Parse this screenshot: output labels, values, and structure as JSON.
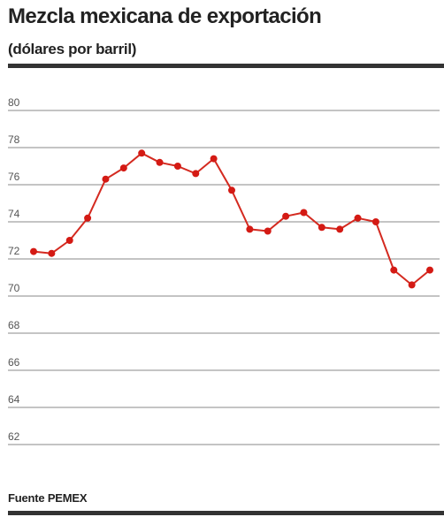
{
  "header": {
    "title": "Mezcla mexicana de exportación",
    "subtitle": "(dólares por barril)"
  },
  "footer": {
    "source": "Fuente PEMEX"
  },
  "colors": {
    "line": "#d42a20",
    "marker": "#d41a14",
    "grid": "#8a8a8a",
    "rule": "#333333"
  },
  "chart_data": {
    "type": "line",
    "title": "Mezcla mexicana de exportación",
    "subtitle": "(dólares por barril)",
    "xlabel": "",
    "ylabel": "",
    "ylim": [
      62,
      80
    ],
    "yticks": [
      80,
      78,
      76,
      74,
      72,
      70,
      68,
      66,
      64,
      62
    ],
    "grid": "horizontal",
    "legend": "none",
    "series": [
      {
        "values": [
          72.4,
          72.3,
          73.0,
          74.2,
          76.3,
          76.9,
          77.7,
          77.2,
          77.0,
          76.6,
          77.4,
          75.7,
          73.6,
          73.5,
          74.3,
          74.5,
          73.7,
          73.6,
          74.2,
          74.0,
          71.4,
          70.6,
          71.4
        ]
      }
    ]
  }
}
